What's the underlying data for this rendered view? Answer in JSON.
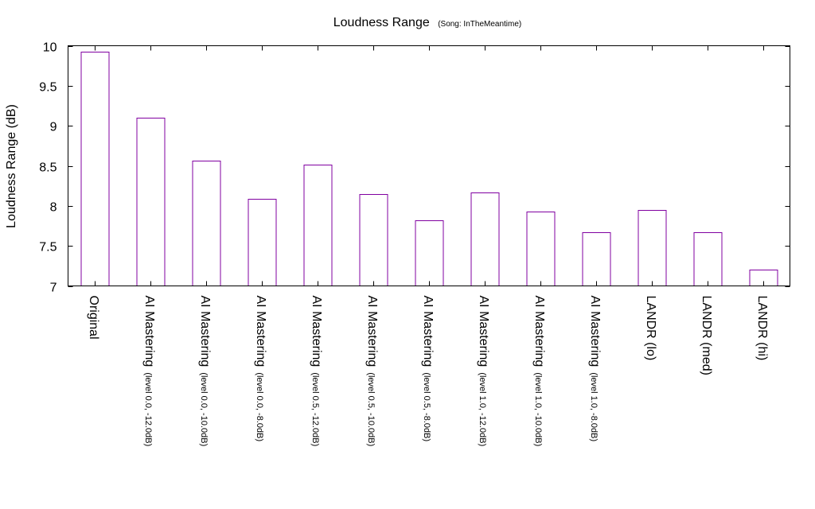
{
  "chart_data": {
    "type": "bar",
    "title": "Loudness Range",
    "subtitle": "(Song: InTheMeantime)",
    "xlabel": "",
    "ylabel": "Loudness Range (dB)",
    "ylim": [
      7,
      10
    ],
    "yticks": [
      "7",
      "7.5",
      "8",
      "8.5",
      "9",
      "9.5",
      "10"
    ],
    "grid": false,
    "categories": [
      {
        "label": "Original",
        "sub": ""
      },
      {
        "label": "AI Mastering",
        "sub": "(level 0.0, -12.0dB)"
      },
      {
        "label": "AI Mastering",
        "sub": "(level 0.0, -10.0dB)"
      },
      {
        "label": "AI Mastering",
        "sub": "(level 0.0, -8.0dB)"
      },
      {
        "label": "AI Mastering",
        "sub": "(level 0.5, -12.0dB)"
      },
      {
        "label": "AI Mastering",
        "sub": "(level 0.5, -10.0dB)"
      },
      {
        "label": "AI Mastering",
        "sub": "(level 0.5, -8.0dB)"
      },
      {
        "label": "AI Mastering",
        "sub": "(level 1.0, -12.0dB)"
      },
      {
        "label": "AI Mastering",
        "sub": "(level 1.0, -10.0dB)"
      },
      {
        "label": "AI Mastering",
        "sub": "(level 1.0, -8.0dB)"
      },
      {
        "label": "LANDR (lo)",
        "sub": ""
      },
      {
        "label": "LANDR (med)",
        "sub": ""
      },
      {
        "label": "LANDR (hi)",
        "sub": ""
      }
    ],
    "values": [
      9.93,
      9.1,
      8.56,
      8.09,
      8.51,
      8.15,
      7.82,
      8.17,
      7.93,
      7.67,
      7.95,
      7.67,
      7.2
    ],
    "bar_color": "#8000a0"
  }
}
